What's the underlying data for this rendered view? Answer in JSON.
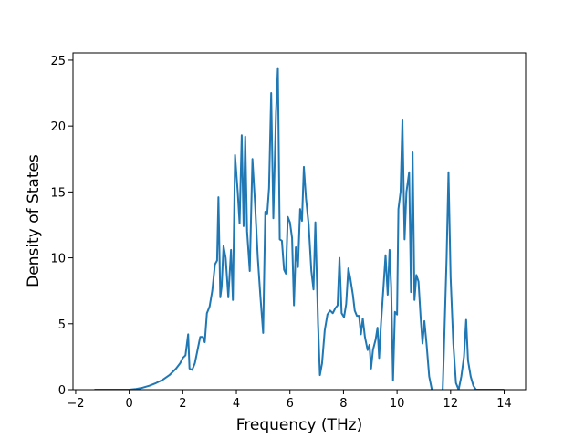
{
  "chart_data": {
    "type": "line",
    "xlabel": "Frequency (THz)",
    "ylabel": "Density of States",
    "x": [
      -1.3,
      0,
      0.25,
      0.5,
      0.75,
      1,
      1.25,
      1.5,
      1.75,
      1.9,
      2.0,
      2.1,
      2.2,
      2.25,
      2.35,
      2.45,
      2.55,
      2.65,
      2.75,
      2.82,
      2.9,
      3.0,
      3.1,
      3.2,
      3.28,
      3.33,
      3.4,
      3.45,
      3.52,
      3.6,
      3.7,
      3.8,
      3.87,
      3.95,
      4.05,
      4.12,
      4.2,
      4.27,
      4.33,
      4.4,
      4.5,
      4.6,
      4.7,
      4.8,
      4.9,
      5.0,
      5.08,
      5.15,
      5.22,
      5.3,
      5.38,
      5.48,
      5.55,
      5.62,
      5.7,
      5.78,
      5.85,
      5.92,
      6.0,
      6.08,
      6.15,
      6.22,
      6.3,
      6.38,
      6.45,
      6.52,
      6.6,
      6.7,
      6.8,
      6.88,
      6.95,
      7.05,
      7.12,
      7.2,
      7.3,
      7.4,
      7.5,
      7.6,
      7.7,
      7.78,
      7.85,
      7.93,
      8.02,
      8.1,
      8.18,
      8.25,
      8.35,
      8.42,
      8.5,
      8.58,
      8.65,
      8.72,
      8.8,
      8.9,
      8.97,
      9.03,
      9.1,
      9.2,
      9.27,
      9.33,
      9.4,
      9.5,
      9.57,
      9.65,
      9.72,
      9.78,
      9.85,
      9.92,
      10.0,
      10.05,
      10.13,
      10.2,
      10.28,
      10.35,
      10.45,
      10.52,
      10.58,
      10.65,
      10.72,
      10.8,
      10.88,
      10.95,
      11.02,
      11.1,
      11.2,
      11.3,
      11.35,
      11.7,
      11.75,
      11.85,
      11.92,
      12.0,
      12.1,
      12.2,
      12.3,
      12.4,
      12.5,
      12.58,
      12.65,
      12.75,
      12.85,
      12.95,
      14.0
    ],
    "series": [
      {
        "name": "DOS",
        "color": "#1f77b4",
        "values": [
          0,
          0,
          0.05,
          0.15,
          0.3,
          0.5,
          0.75,
          1.1,
          1.6,
          2.0,
          2.4,
          2.6,
          4.2,
          1.6,
          1.5,
          2.0,
          3.0,
          4.0,
          4.0,
          3.6,
          5.8,
          6.3,
          7.5,
          9.5,
          9.8,
          14.6,
          7.0,
          7.8,
          10.9,
          10.0,
          7.0,
          10.6,
          6.8,
          17.8,
          15.0,
          12.6,
          19.3,
          12.4,
          19.2,
          12.0,
          9.0,
          17.5,
          14.0,
          10.0,
          7.0,
          4.3,
          13.5,
          13.3,
          15.3,
          22.5,
          13.0,
          21.0,
          24.4,
          11.4,
          11.3,
          9.1,
          8.8,
          13.1,
          12.7,
          11.5,
          6.4,
          10.8,
          9.3,
          13.7,
          12.8,
          16.9,
          14.5,
          12.5,
          9.0,
          7.6,
          12.7,
          5.0,
          1.1,
          2.0,
          4.5,
          5.7,
          6.0,
          5.8,
          6.2,
          6.4,
          10.0,
          5.8,
          5.5,
          6.5,
          9.2,
          8.5,
          7.2,
          6.0,
          5.6,
          5.6,
          4.2,
          5.4,
          4.0,
          3.0,
          3.4,
          1.6,
          3.0,
          3.8,
          4.7,
          2.4,
          5.0,
          8.0,
          10.2,
          7.2,
          10.6,
          7.8,
          0.7,
          5.9,
          5.7,
          13.7,
          15.0,
          20.5,
          11.4,
          15.0,
          16.5,
          7.4,
          18.0,
          6.8,
          8.7,
          8.2,
          5.5,
          3.5,
          5.2,
          3.5,
          1.0,
          0.0,
          -0.3,
          -0.3,
          3.0,
          10.0,
          16.5,
          8.5,
          3.5,
          0.5,
          0.0,
          1.0,
          2.5,
          5.3,
          2.2,
          1.0,
          0.3,
          0.0,
          0
        ]
      }
    ],
    "xlim": [
      -2.1,
      14.8
    ],
    "ylim": [
      0,
      25.55
    ],
    "xticks": [
      {
        "value": -2,
        "label": "−2"
      },
      0,
      2,
      4,
      6,
      8,
      10,
      12,
      14
    ],
    "yticks": [
      0,
      5,
      10,
      15,
      20,
      25
    ]
  }
}
